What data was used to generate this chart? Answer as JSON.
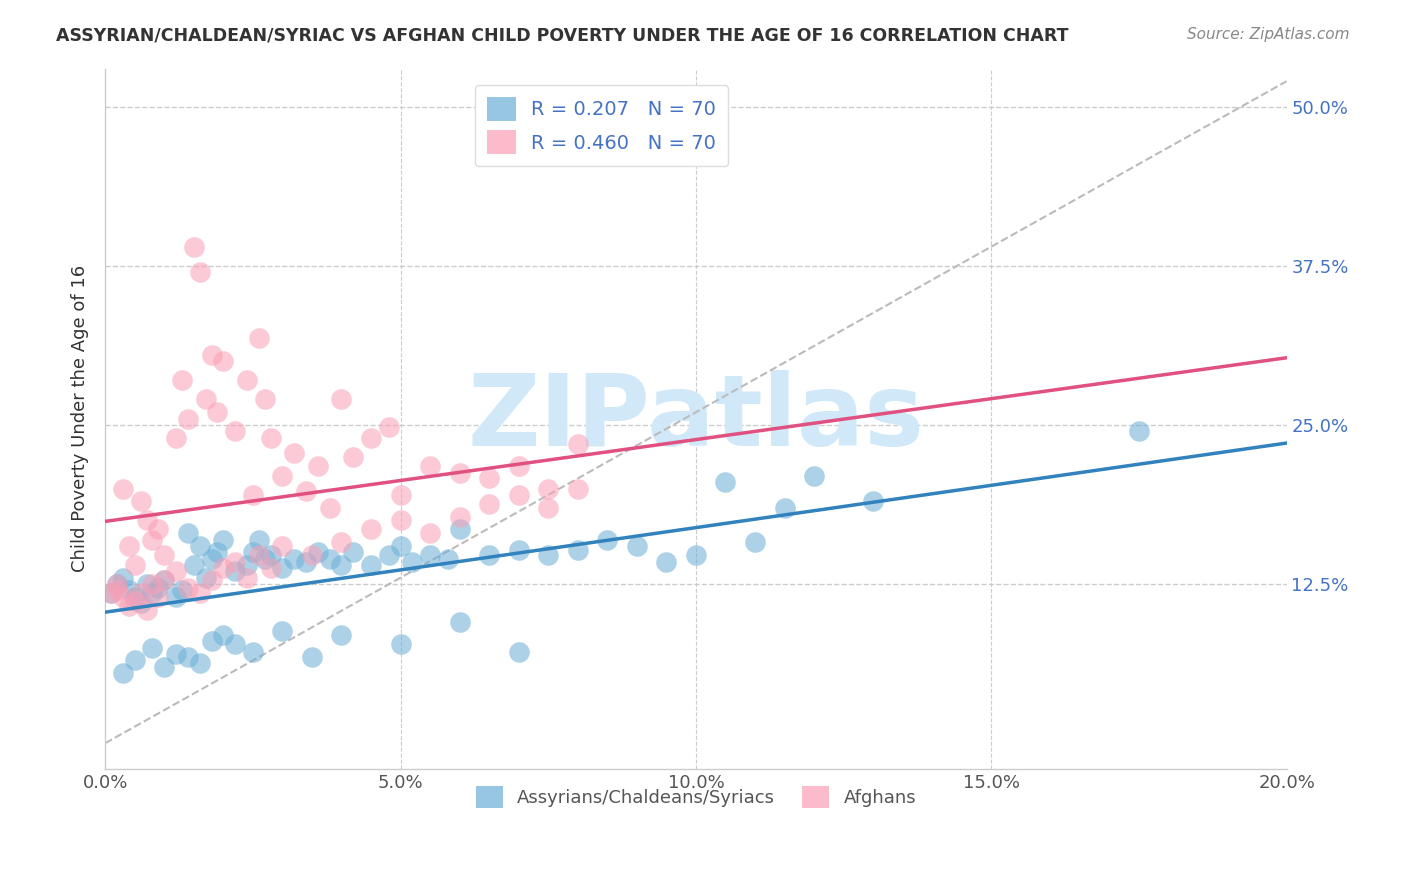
{
  "title": "ASSYRIAN/CHALDEAN/SYRIAC VS AFGHAN CHILD POVERTY UNDER THE AGE OF 16 CORRELATION CHART",
  "source": "Source: ZipAtlas.com",
  "ylabel_label": "Child Poverty Under the Age of 16",
  "legend_label1": "Assyrians/Chaldeans/Syriacs",
  "legend_label2": "Afghans",
  "r1": 0.207,
  "n1": 70,
  "r2": 0.46,
  "n2": 70,
  "color_blue": "#6baed6",
  "color_pink": "#fa9fb5",
  "trendline_blue": "#3182bd",
  "trendline_pink": "#e05080",
  "trendline_gray": "#bbbbbb",
  "watermark": "ZIPatlas",
  "watermark_color": "#d0e8f8",
  "background": "#ffffff",
  "xlim": [
    0.0,
    0.2
  ],
  "ylim": [
    -0.02,
    0.53
  ],
  "blue_scatter": {
    "x": [
      0.001,
      0.002,
      0.003,
      0.004,
      0.005,
      0.006,
      0.007,
      0.008,
      0.009,
      0.01,
      0.012,
      0.013,
      0.014,
      0.015,
      0.016,
      0.017,
      0.018,
      0.019,
      0.02,
      0.022,
      0.024,
      0.025,
      0.026,
      0.027,
      0.028,
      0.03,
      0.032,
      0.034,
      0.036,
      0.038,
      0.04,
      0.042,
      0.045,
      0.048,
      0.05,
      0.052,
      0.055,
      0.058,
      0.06,
      0.065,
      0.07,
      0.075,
      0.08,
      0.085,
      0.09,
      0.095,
      0.1,
      0.11,
      0.12,
      0.13,
      0.003,
      0.005,
      0.008,
      0.01,
      0.012,
      0.014,
      0.016,
      0.018,
      0.02,
      0.022,
      0.025,
      0.03,
      0.035,
      0.04,
      0.05,
      0.06,
      0.07,
      0.175,
      0.105,
      0.115
    ],
    "y": [
      0.118,
      0.125,
      0.13,
      0.12,
      0.115,
      0.11,
      0.125,
      0.118,
      0.122,
      0.128,
      0.115,
      0.12,
      0.165,
      0.14,
      0.155,
      0.13,
      0.145,
      0.15,
      0.16,
      0.135,
      0.14,
      0.15,
      0.16,
      0.145,
      0.148,
      0.138,
      0.145,
      0.142,
      0.15,
      0.145,
      0.14,
      0.15,
      0.14,
      0.148,
      0.155,
      0.142,
      0.148,
      0.145,
      0.168,
      0.148,
      0.152,
      0.148,
      0.152,
      0.16,
      0.155,
      0.142,
      0.148,
      0.158,
      0.21,
      0.19,
      0.055,
      0.065,
      0.075,
      0.06,
      0.07,
      0.068,
      0.063,
      0.08,
      0.085,
      0.078,
      0.072,
      0.088,
      0.068,
      0.085,
      0.078,
      0.095,
      0.072,
      0.245,
      0.205,
      0.185
    ]
  },
  "pink_scatter": {
    "x": [
      0.001,
      0.002,
      0.003,
      0.004,
      0.005,
      0.006,
      0.007,
      0.008,
      0.009,
      0.01,
      0.012,
      0.013,
      0.014,
      0.015,
      0.016,
      0.017,
      0.018,
      0.019,
      0.02,
      0.022,
      0.024,
      0.025,
      0.026,
      0.027,
      0.028,
      0.03,
      0.032,
      0.034,
      0.036,
      0.038,
      0.04,
      0.042,
      0.045,
      0.048,
      0.05,
      0.055,
      0.06,
      0.065,
      0.07,
      0.075,
      0.08,
      0.002,
      0.003,
      0.004,
      0.005,
      0.006,
      0.007,
      0.008,
      0.009,
      0.01,
      0.012,
      0.014,
      0.016,
      0.018,
      0.02,
      0.022,
      0.024,
      0.026,
      0.028,
      0.03,
      0.035,
      0.04,
      0.045,
      0.05,
      0.055,
      0.06,
      0.065,
      0.07,
      0.075,
      0.08
    ],
    "y": [
      0.118,
      0.125,
      0.2,
      0.155,
      0.14,
      0.19,
      0.175,
      0.16,
      0.168,
      0.148,
      0.24,
      0.285,
      0.255,
      0.39,
      0.37,
      0.27,
      0.305,
      0.26,
      0.3,
      0.245,
      0.285,
      0.195,
      0.318,
      0.27,
      0.24,
      0.21,
      0.228,
      0.198,
      0.218,
      0.185,
      0.27,
      0.225,
      0.24,
      0.248,
      0.195,
      0.218,
      0.212,
      0.208,
      0.218,
      0.2,
      0.235,
      0.12,
      0.115,
      0.108,
      0.112,
      0.118,
      0.105,
      0.125,
      0.115,
      0.128,
      0.135,
      0.122,
      0.118,
      0.128,
      0.138,
      0.142,
      0.13,
      0.148,
      0.138,
      0.155,
      0.148,
      0.158,
      0.168,
      0.175,
      0.165,
      0.178,
      0.188,
      0.195,
      0.185,
      0.2
    ]
  }
}
